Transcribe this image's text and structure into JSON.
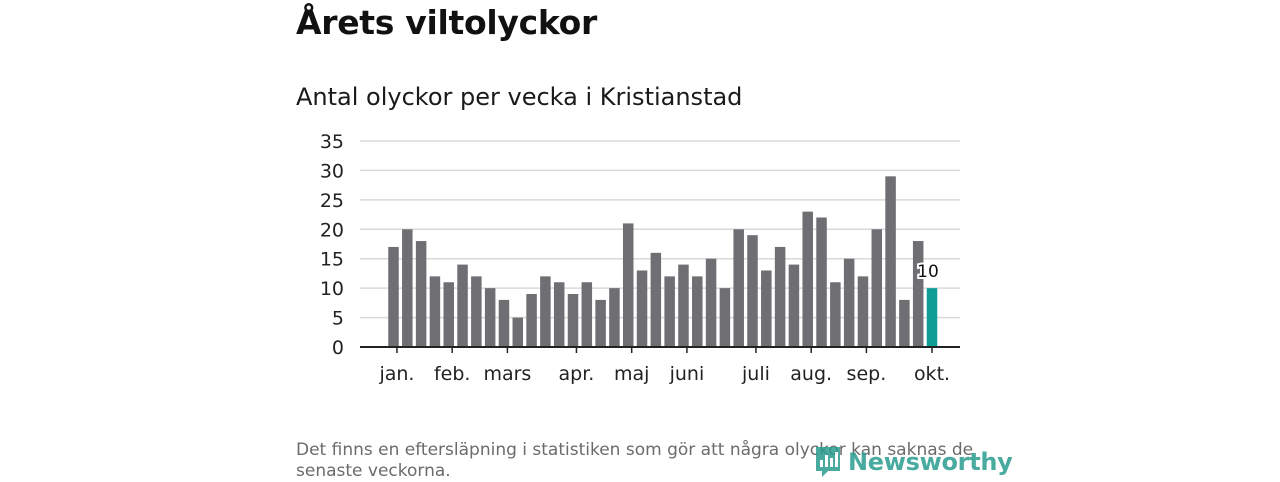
{
  "header": {
    "title": "Årets viltolyckor",
    "subtitle": "Antal olyckor per vecka i Kristianstad"
  },
  "footer": {
    "note": "Det finns en eftersläpning i statistiken som gör att några olyckor kan saknas de senaste veckorna.",
    "brand": "Newsworthy"
  },
  "colors": {
    "bar": "#6e6e73",
    "highlight": "#0f9e95",
    "grid": "#d9d9d9",
    "axis": "#222222",
    "brand": "#2a9d8f"
  },
  "chart_data": {
    "type": "bar",
    "title": "Antal olyckor per vecka i Kristianstad",
    "xlabel": "",
    "ylabel": "",
    "ylim": [
      0,
      35
    ],
    "yticks": [
      0,
      5,
      10,
      15,
      20,
      25,
      30,
      35
    ],
    "grid": true,
    "weeks": [
      1,
      2,
      3,
      4,
      5,
      6,
      7,
      8,
      9,
      10,
      11,
      12,
      13,
      14,
      15,
      16,
      17,
      18,
      19,
      20,
      21,
      22,
      23,
      24,
      25,
      26,
      27,
      28,
      29,
      30,
      31,
      32,
      33,
      34,
      35,
      36,
      37,
      38,
      39,
      40
    ],
    "values": [
      17,
      20,
      18,
      12,
      11,
      14,
      12,
      10,
      8,
      5,
      9,
      12,
      11,
      9,
      11,
      8,
      10,
      21,
      13,
      16,
      12,
      14,
      12,
      15,
      10,
      20,
      19,
      13,
      17,
      14,
      23,
      22,
      11,
      15,
      12,
      20,
      29,
      8,
      18,
      10
    ],
    "highlight_index": 39,
    "highlight_label": "10",
    "month_labels": [
      {
        "label": "jan.",
        "week": 1.25
      },
      {
        "label": "feb.",
        "week": 5.25
      },
      {
        "label": "mars",
        "week": 9.25
      },
      {
        "label": "apr.",
        "week": 14.25
      },
      {
        "label": "maj",
        "week": 18.25
      },
      {
        "label": "juni",
        "week": 22.25
      },
      {
        "label": "juli",
        "week": 27.25
      },
      {
        "label": "aug.",
        "week": 31.25
      },
      {
        "label": "sep.",
        "week": 35.25
      },
      {
        "label": "okt.",
        "week": 40
      }
    ]
  }
}
